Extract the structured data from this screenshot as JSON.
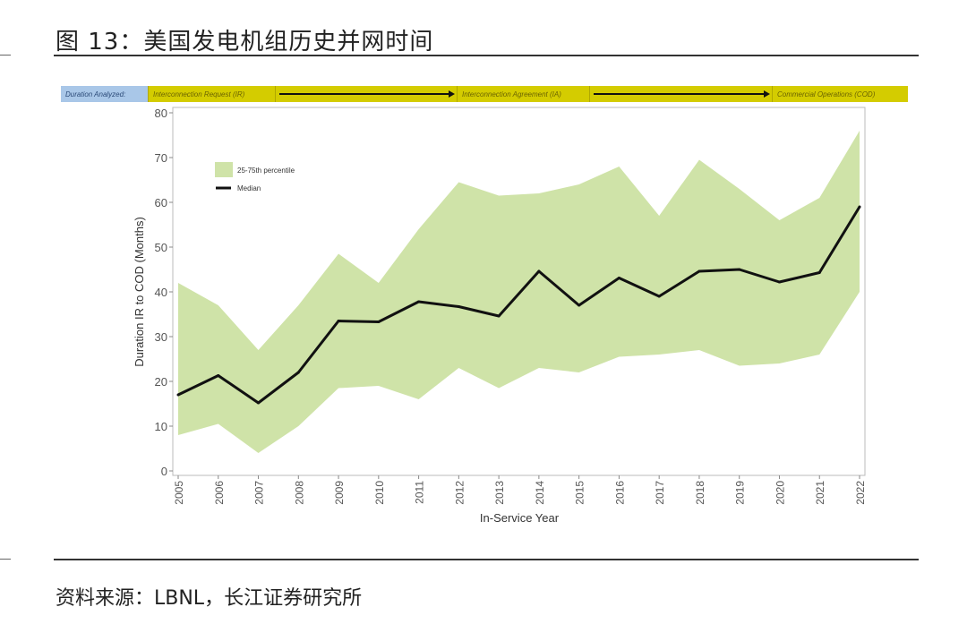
{
  "title": "图 13：美国发电机组历史并网时间",
  "source": "资料来源：LBNL，长江证券研究所",
  "banner": {
    "label": "Duration Analyzed:",
    "stage1": "Interconnection Request (IR)",
    "stage2": "Interconnection Agreement (IA)",
    "stage3": "Commercial Operations (COD)"
  },
  "chart_data": {
    "type": "area",
    "xlabel": "In-Service Year",
    "ylabel": "Duration IR to COD (Months)",
    "ylim": [
      0,
      80
    ],
    "yticks": [
      0,
      10,
      20,
      30,
      40,
      50,
      60,
      70,
      80
    ],
    "x": [
      2005,
      2006,
      2007,
      2008,
      2009,
      2010,
      2011,
      2012,
      2013,
      2014,
      2015,
      2016,
      2017,
      2018,
      2019,
      2020,
      2021,
      2022
    ],
    "series": [
      {
        "name": "25-75th percentile",
        "type": "band",
        "lower": [
          8,
          10.5,
          4,
          10,
          18.5,
          19,
          16,
          23,
          18.5,
          23,
          22,
          25.5,
          26,
          27,
          23.5,
          24,
          26,
          40
        ],
        "upper": [
          42,
          37,
          27,
          37,
          48.5,
          42,
          54,
          64.5,
          61.5,
          62,
          64,
          68,
          57,
          69.5,
          63,
          56,
          61,
          76
        ]
      },
      {
        "name": "Median",
        "type": "line",
        "values": [
          17,
          21.3,
          15.2,
          22,
          33.5,
          33.3,
          37.8,
          36.7,
          34.6,
          44.6,
          37,
          43.1,
          39,
          44.6,
          45,
          42.2,
          44.3,
          59
        ]
      }
    ],
    "legend": "top-left",
    "grid": false,
    "colors": {
      "band": "#cfe3a8",
      "median": "#111111"
    }
  }
}
